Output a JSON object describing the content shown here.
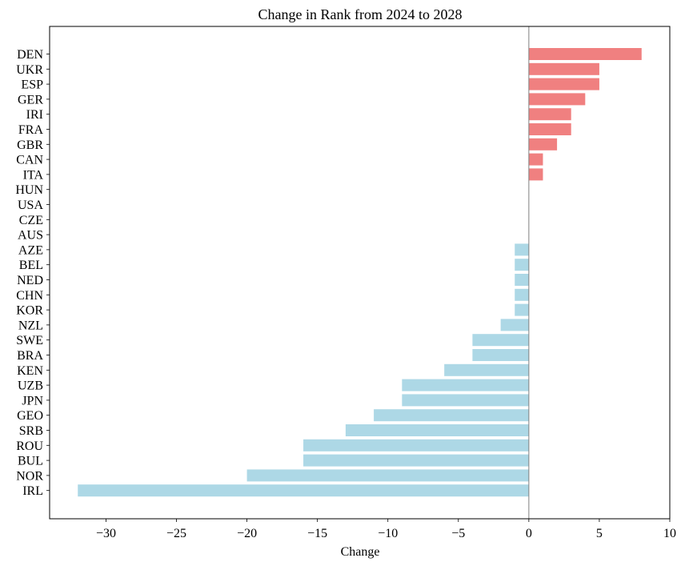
{
  "chart_data": {
    "type": "bar",
    "orientation": "horizontal",
    "title": "Change in Rank from 2024 to 2028",
    "xlabel": "Change",
    "ylabel": "",
    "xlim": [
      -34,
      10
    ],
    "xticks": [
      -30,
      -25,
      -20,
      -15,
      -10,
      -5,
      0,
      5,
      10
    ],
    "xtick_labels": [
      "−30",
      "−25",
      "−20",
      "−15",
      "−10",
      "−5",
      "0",
      "5",
      "10"
    ],
    "grid": false,
    "zero_line": true,
    "categories": [
      "DEN",
      "UKR",
      "ESP",
      "GER",
      "IRI",
      "FRA",
      "GBR",
      "CAN",
      "ITA",
      "HUN",
      "USA",
      "CZE",
      "AUS",
      "AZE",
      "BEL",
      "NED",
      "CHN",
      "KOR",
      "NZL",
      "SWE",
      "BRA",
      "KEN",
      "UZB",
      "JPN",
      "GEO",
      "SRB",
      "ROU",
      "BUL",
      "NOR",
      "IRL"
    ],
    "values": [
      8,
      5,
      5,
      4,
      3,
      3,
      2,
      1,
      1,
      0,
      0,
      0,
      0,
      -1,
      -1,
      -1,
      -1,
      -1,
      -2,
      -4,
      -4,
      -6,
      -9,
      -9,
      -11,
      -13,
      -16,
      -16,
      -20,
      -32
    ],
    "colors": {
      "positive": "#f08080",
      "negative": "#add8e6",
      "zero_line": "#808080"
    }
  }
}
